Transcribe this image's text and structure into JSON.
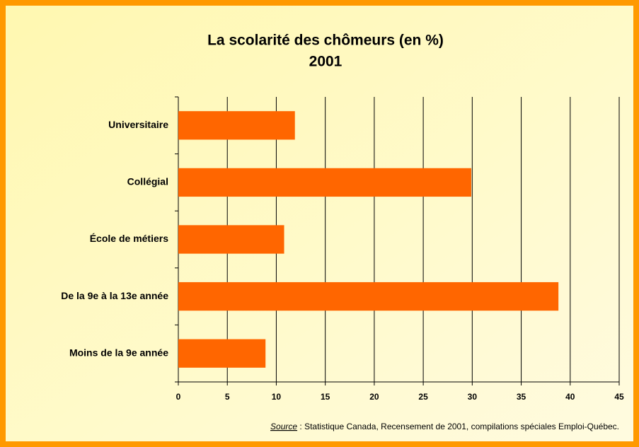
{
  "chart_data": {
    "type": "bar",
    "orientation": "horizontal",
    "title": [
      "La scolarité des chômeurs (en %)",
      "2001"
    ],
    "categories": [
      "Universitaire",
      "Collégial",
      "École de métiers",
      "De la 9e à la 13e année",
      "Moins de la 9e année"
    ],
    "values": [
      11.9,
      29.9,
      10.8,
      38.8,
      8.9
    ],
    "color": "#ff6600",
    "xlim": [
      0,
      45
    ],
    "xticks": [
      0,
      5,
      10,
      15,
      20,
      25,
      30,
      35,
      40,
      45
    ],
    "grid": true,
    "source_label": "Source",
    "source_text": " : Statistique Canada, Recensement de 2001, compilations spéciales Emploi-Québec."
  }
}
